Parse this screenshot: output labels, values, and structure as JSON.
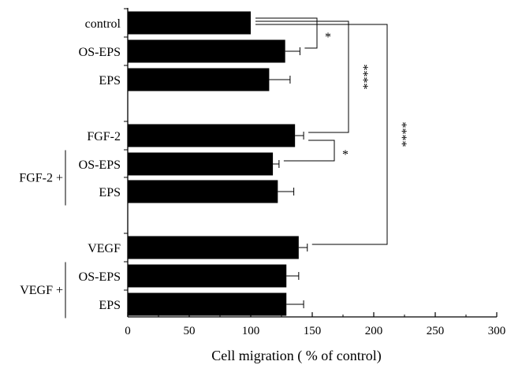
{
  "chart_data": {
    "type": "bar",
    "orientation": "horizontal",
    "xlabel": "Cell migration ( % of control)",
    "ylabel": "",
    "title": "",
    "xlim": [
      0,
      300
    ],
    "xticks": [
      "0",
      "50",
      "100",
      "150",
      "200",
      "250",
      "300"
    ],
    "grid": false,
    "bar_color": "#000000",
    "categories": [
      "control",
      "OS-EPS",
      "EPS",
      "FGF-2",
      "OS-EPS",
      "EPS",
      "VEGF",
      "OS-EPS",
      "EPS"
    ],
    "values": [
      100,
      128,
      115,
      136,
      118,
      122,
      139,
      129,
      129
    ],
    "errors": [
      0,
      12,
      17,
      7,
      5,
      13,
      7,
      10,
      14
    ],
    "groups": [
      {
        "label": "FGF-2 +",
        "members": [
          4,
          5
        ]
      },
      {
        "label": "VEGF +",
        "members": [
          7,
          8
        ]
      }
    ],
    "significance": [
      {
        "from": 0,
        "to": 1,
        "label": "*"
      },
      {
        "from": 0,
        "to": 3,
        "label": "****"
      },
      {
        "from": 0,
        "to": 6,
        "label": "****"
      },
      {
        "from": 3,
        "to": 4,
        "label": "*"
      }
    ]
  }
}
